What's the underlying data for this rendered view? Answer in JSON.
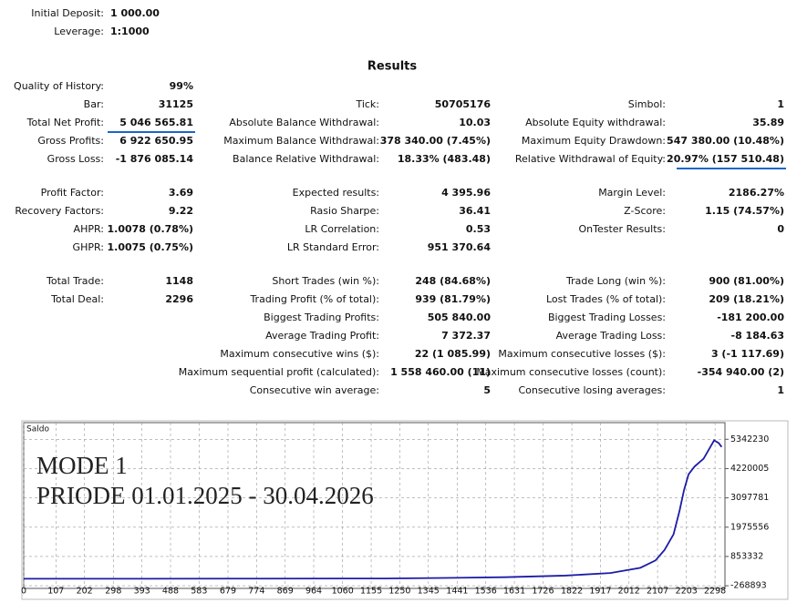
{
  "settings": [
    {
      "label": "Initial Deposit:",
      "value": "1 000.00"
    },
    {
      "label": "Leverage:",
      "value": "1:1000"
    }
  ],
  "results": {
    "title": "Results",
    "blocks": [
      [
        [
          {
            "label": "Quality of History:",
            "value": "99%"
          },
          null,
          null
        ],
        [
          {
            "label": "Bar:",
            "value": "31125"
          },
          {
            "label": "Tick:",
            "value": "50705176"
          },
          {
            "label": "Simbol:",
            "value": "1"
          }
        ],
        [
          {
            "label": "Total Net Profit:",
            "value": "5 046 565.81"
          },
          {
            "label": "Absolute Balance Withdrawal:",
            "value": "10.03"
          },
          {
            "label": "Absolute Equity withdrawal:",
            "value": "35.89"
          }
        ],
        [
          {
            "label": "Gross Profits:",
            "value": "6 922 650.95"
          },
          {
            "label": "Maximum Balance Withdrawal:",
            "value": "378 340.00 (7.45%)"
          },
          {
            "label": "Maximum Equity Drawdown:",
            "value": "547 380.00 (10.48%)"
          }
        ],
        [
          {
            "label": "Gross Loss:",
            "value": "-1 876 085.14"
          },
          {
            "label": "Balance Relative Withdrawal:",
            "value": "18.33% (483.48)"
          },
          {
            "label": "Relative Withdrawal of Equity:",
            "value": "20.97% (157 510.48)"
          }
        ]
      ],
      [
        [
          {
            "label": "Profit Factor:",
            "value": "3.69"
          },
          {
            "label": "Expected results:",
            "value": "4 395.96"
          },
          {
            "label": "Margin Level:",
            "value": "2186.27%"
          }
        ],
        [
          {
            "label": "Recovery Factors:",
            "value": "9.22"
          },
          {
            "label": "Rasio Sharpe:",
            "value": "36.41"
          },
          {
            "label": "Z-Score:",
            "value": "1.15 (74.57%)"
          }
        ],
        [
          {
            "label": "AHPR:",
            "value": "1.0078 (0.78%)"
          },
          {
            "label": "LR Correlation:",
            "value": "0.53"
          },
          {
            "label": "OnTester Results:",
            "value": "0"
          }
        ],
        [
          {
            "label": "GHPR:",
            "value": "1.0075 (0.75%)"
          },
          {
            "label": "LR Standard Error:",
            "value": "951 370.64"
          },
          null
        ]
      ],
      [
        [
          {
            "label": "Total Trade:",
            "value": "1148"
          },
          {
            "label": "Short Trades (win %):",
            "value": "248 (84.68%)"
          },
          {
            "label": "Trade Long (win %):",
            "value": "900 (81.00%)"
          }
        ],
        [
          {
            "label": "Total Deal:",
            "value": "2296"
          },
          {
            "label": "Trading Profit (% of total):",
            "value": "939 (81.79%)"
          },
          {
            "label": "Lost Trades (% of total):",
            "value": "209 (18.21%)"
          }
        ],
        [
          null,
          {
            "label": "Biggest Trading Profits:",
            "value": "505 840.00"
          },
          {
            "label": "Biggest Trading Losses:",
            "value": "-181 200.00"
          }
        ],
        [
          null,
          {
            "label": "Average Trading Profit:",
            "value": "7 372.37"
          },
          {
            "label": "Average Trading Loss:",
            "value": "-8 184.63"
          }
        ],
        [
          null,
          {
            "label": "Maximum consecutive wins ($):",
            "value": "22 (1 085.99)"
          },
          {
            "label": "Maximum consecutive losses ($):",
            "value": "3 (-1 117.69)"
          }
        ],
        [
          null,
          {
            "label": "Maximum sequential profit (calculated):",
            "value": "1 558 460.00 (11)"
          },
          {
            "label": "Maximum consecutive losses (count):",
            "value": "-354 940.00 (2)"
          }
        ],
        [
          null,
          {
            "label": "Consecutive win average:",
            "value": "5"
          },
          {
            "label": "Consecutive losing averages:",
            "value": "1"
          }
        ]
      ]
    ]
  },
  "chart_data": {
    "type": "line",
    "title": "Saldo",
    "annotations": [
      "MODE 1",
      "PRIODE 01.01.2025 - 30.04.2026"
    ],
    "x": [
      0,
      400,
      800,
      1200,
      1400,
      1600,
      1800,
      1950,
      2050,
      2100,
      2130,
      2160,
      2180,
      2195,
      2210,
      2230,
      2260,
      2280,
      2295,
      2310,
      2320
    ],
    "series": [
      {
        "color": "#1c1ca8",
        "values": [
          1000,
          1000,
          5000,
          10000,
          30000,
          60000,
          120000,
          220000,
          420000,
          700000,
          1100000,
          1700000,
          2600000,
          3400000,
          4000000,
          4300000,
          4600000,
          5000000,
          5300000,
          5200000,
          5047566
        ]
      }
    ],
    "xlim": [
      0,
      2331
    ],
    "ylim": [
      -370000,
      5980000
    ],
    "xticks": [
      0,
      107,
      202,
      298,
      393,
      488,
      583,
      679,
      774,
      869,
      964,
      1060,
      1155,
      1250,
      1345,
      1441,
      1536,
      1631,
      1726,
      1822,
      1917,
      2012,
      2107,
      2203,
      2298
    ],
    "yticks": [
      -268893,
      853332,
      1975556,
      3097781,
      4220005,
      5342230
    ],
    "grid": true
  }
}
